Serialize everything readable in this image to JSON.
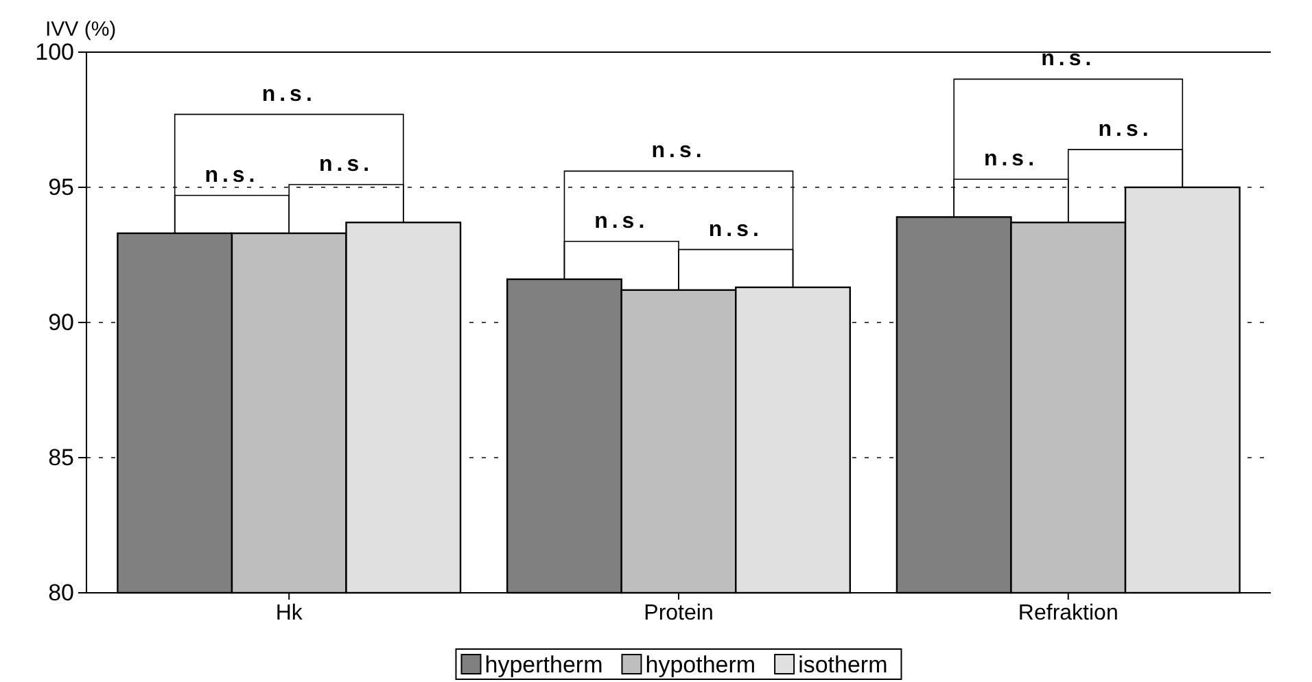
{
  "chart_data": {
    "type": "bar",
    "ylabel": "IVV (%)",
    "categories": [
      "Hk",
      "Protein",
      "Refraktion"
    ],
    "series": [
      {
        "name": "hypertherm",
        "color": "#808080",
        "values": [
          93.3,
          91.6,
          93.9
        ]
      },
      {
        "name": "hypotherm",
        "color": "#bebebe",
        "values": [
          93.3,
          91.2,
          93.7
        ]
      },
      {
        "name": "isotherm",
        "color": "#e0e0e0",
        "values": [
          93.7,
          91.3,
          95.0
        ]
      }
    ],
    "ylim": [
      80,
      100
    ],
    "yticks": [
      80,
      85,
      90,
      95,
      100
    ],
    "grid": "y",
    "legend": "bottom",
    "annotations": [
      "n.s.",
      "n.s.",
      "n.s.",
      "n.s.",
      "n.s.",
      "n.s.",
      "n.s.",
      "n.s.",
      "n.s."
    ]
  }
}
